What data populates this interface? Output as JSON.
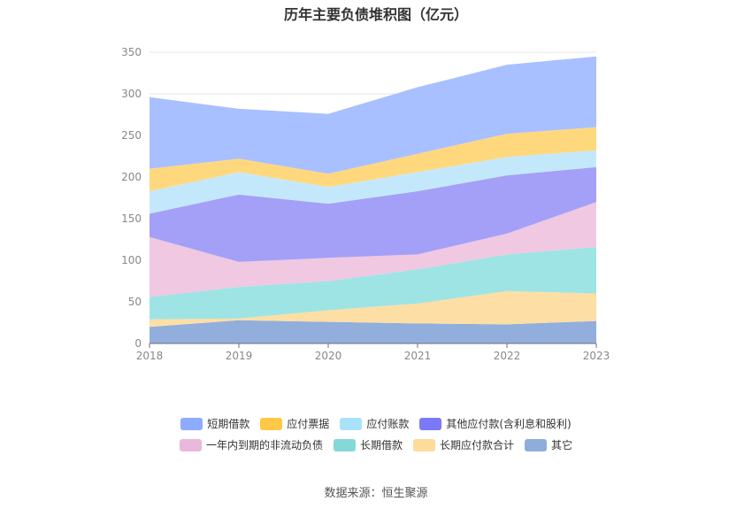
{
  "chart_data": {
    "type": "area",
    "stacked": true,
    "title": "历年主要负债堆积图（亿元）",
    "x": [
      "2018",
      "2019",
      "2020",
      "2021",
      "2022",
      "2023"
    ],
    "y_ticks": [
      "0",
      "50",
      "100",
      "150",
      "200",
      "250",
      "300",
      "350"
    ],
    "ylim": [
      0,
      350
    ],
    "grid": "horizontal",
    "legend_placement": "bottom",
    "series": [
      {
        "name": "其它",
        "color": "#92aedc",
        "values": [
          20,
          28,
          26,
          24,
          23,
          27
        ]
      },
      {
        "name": "长期应付款合计",
        "color": "#fddea4",
        "values": [
          9,
          2,
          14,
          24,
          40,
          33
        ]
      },
      {
        "name": "长期借款",
        "color": "#9ee4e4",
        "values": [
          27,
          38,
          35,
          41,
          44,
          56
        ]
      },
      {
        "name": "一年内到期的非流动负债",
        "color": "#f0c8e2",
        "values": [
          72,
          30,
          28,
          18,
          25,
          54
        ]
      },
      {
        "name": "其他应付款(含利息和股利)",
        "color": "#a4a0f8",
        "values": [
          28,
          81,
          65,
          76,
          70,
          42
        ]
      },
      {
        "name": "应付账款",
        "color": "#c4e8fb",
        "values": [
          27,
          27,
          20,
          23,
          22,
          20
        ]
      },
      {
        "name": "应付票据",
        "color": "#ffd87e",
        "values": [
          27,
          16,
          16,
          22,
          28,
          28
        ]
      },
      {
        "name": "短期借款",
        "color": "#a8c0ff",
        "values": [
          86,
          60,
          72,
          80,
          83,
          85
        ]
      }
    ],
    "legend": {
      "row1": [
        {
          "name": "短期借款",
          "color": "#8fabff"
        },
        {
          "name": "应付票据",
          "color": "#ffc845"
        },
        {
          "name": "应付账款",
          "color": "#a9e1fb"
        },
        {
          "name": "其他应付款(含利息和股利)",
          "color": "#7b79f7"
        }
      ],
      "row2": [
        {
          "name": "一年内到期的非流动负债",
          "color": "#e9b8dc"
        },
        {
          "name": "长期借款",
          "color": "#84d8d8"
        },
        {
          "name": "长期应付款合计",
          "color": "#fddb9b"
        },
        {
          "name": "其它",
          "color": "#8fadd9"
        }
      ]
    },
    "source": "数据来源：恒生聚源"
  }
}
